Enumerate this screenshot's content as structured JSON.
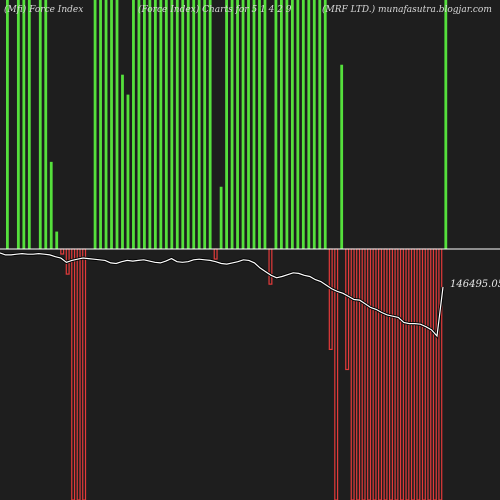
{
  "header": {
    "left_text": "(Mfi) Force  Index",
    "center_text": "(Force Index) Charts for 5 1 4 2 9",
    "right_text": "(MRF LTD.) munafasutra.blogjar.com"
  },
  "colors": {
    "background": "#1e1e1e",
    "positive_bar": "#55e03c",
    "negative_bar": "#e23a3a",
    "zero_line": "#ffffff",
    "price_line": "#ffffff"
  },
  "chart_data": {
    "type": "bar",
    "title": "",
    "zero_baseline": 0,
    "ylim": [
      -100,
      100
    ],
    "bars": [
      {
        "value": 100
      },
      {
        "value": 0
      },
      {
        "value": 100
      },
      {
        "value": 100
      },
      {
        "value": 100
      },
      {
        "value": 0
      },
      {
        "value": 100
      },
      {
        "value": 100
      },
      {
        "value": 35
      },
      {
        "value": 7
      },
      {
        "value": -2
      },
      {
        "value": -10
      },
      {
        "value": -100
      },
      {
        "value": -100
      },
      {
        "value": -100
      },
      {
        "value": 0
      },
      {
        "value": 100
      },
      {
        "value": 100
      },
      {
        "value": 100
      },
      {
        "value": 100
      },
      {
        "value": 100
      },
      {
        "value": 70
      },
      {
        "value": 62
      },
      {
        "value": 100
      },
      {
        "value": 100
      },
      {
        "value": 100
      },
      {
        "value": 100
      },
      {
        "value": 100
      },
      {
        "value": 100
      },
      {
        "value": 100
      },
      {
        "value": 100
      },
      {
        "value": 100
      },
      {
        "value": 100
      },
      {
        "value": 100
      },
      {
        "value": 100
      },
      {
        "value": 100
      },
      {
        "value": 100
      },
      {
        "value": 100
      },
      {
        "value": -4
      },
      {
        "value": 25
      },
      {
        "value": 100
      },
      {
        "value": 100
      },
      {
        "value": 100
      },
      {
        "value": 100
      },
      {
        "value": 100
      },
      {
        "value": 100
      },
      {
        "value": 100
      },
      {
        "value": 100
      },
      {
        "value": -14
      },
      {
        "value": 100
      },
      {
        "value": 100
      },
      {
        "value": 100
      },
      {
        "value": 100
      },
      {
        "value": 100
      },
      {
        "value": 100
      },
      {
        "value": 100
      },
      {
        "value": 100
      },
      {
        "value": 100
      },
      {
        "value": 100
      },
      {
        "value": -40
      },
      {
        "value": -100
      },
      {
        "value": 74
      },
      {
        "value": -48
      },
      {
        "value": -100
      },
      {
        "value": -100
      },
      {
        "value": -100
      },
      {
        "value": -100
      },
      {
        "value": -100
      },
      {
        "value": -100
      },
      {
        "value": -100
      },
      {
        "value": -100
      },
      {
        "value": -100
      },
      {
        "value": -100
      },
      {
        "value": -100
      },
      {
        "value": -100
      },
      {
        "value": -100
      },
      {
        "value": -100
      },
      {
        "value": -100
      },
      {
        "value": -100
      },
      {
        "value": -100
      },
      {
        "value": 100
      }
    ],
    "price_series": [
      0,
      3,
      3,
      2,
      1,
      2,
      2,
      1,
      2,
      3,
      6,
      8,
      15,
      12,
      10,
      8,
      9,
      10,
      11,
      12,
      16,
      17,
      14,
      12,
      13,
      12,
      11,
      13,
      15,
      16,
      13,
      9,
      14,
      15,
      14,
      11,
      10,
      11,
      12,
      14,
      17,
      18,
      16,
      14,
      11,
      12,
      16,
      24,
      30,
      36,
      40,
      38,
      35,
      32,
      33,
      36,
      38,
      43,
      46,
      52,
      58,
      62,
      65,
      70,
      75,
      76,
      82,
      88,
      91,
      96,
      100,
      102,
      104,
      112,
      114,
      114,
      115,
      119,
      124,
      134
    ],
    "last_price_label": "146495.05"
  }
}
